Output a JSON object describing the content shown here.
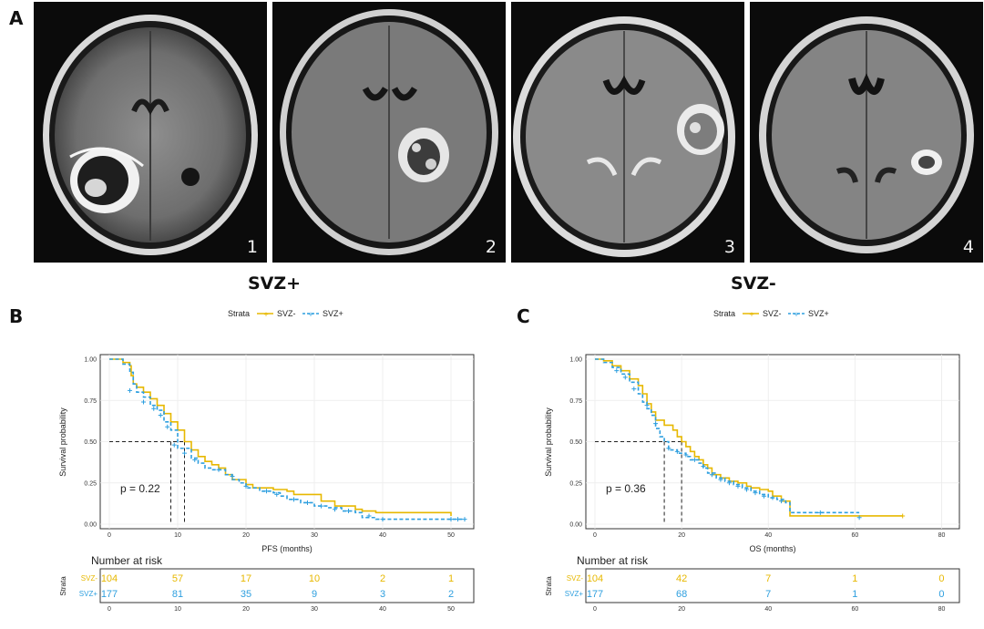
{
  "panel_labels": {
    "a": "A",
    "b": "B",
    "c": "C"
  },
  "images": [
    {
      "number": "1",
      "group": "SVZ+"
    },
    {
      "number": "2",
      "group": "SVZ+"
    },
    {
      "number": "3",
      "group": "SVZ-"
    },
    {
      "number": "4",
      "group": "SVZ-"
    }
  ],
  "groups": {
    "left": "SVZ+",
    "right": "SVZ-"
  },
  "colors": {
    "svz_minus": "#E7B800",
    "svz_plus": "#2E9FDF",
    "grid": "#ebebeb",
    "ref_line": "#222222"
  },
  "chart_data": [
    {
      "type": "line",
      "subtype": "kaplan-meier",
      "legend_title": "Strata",
      "legend_position": "top",
      "xlabel": "PFS (months)",
      "ylabel": "Survival probability",
      "xlim": [
        0,
        52
      ],
      "ylim": [
        0,
        1
      ],
      "xticks": [
        0,
        10,
        20,
        30,
        40,
        50
      ],
      "yticks": [
        "0.00",
        "0.25",
        "0.50",
        "0.75",
        "1.00"
      ],
      "grid": true,
      "annotation": "p = 0.22",
      "median_lines": {
        "y": 0.5,
        "x": [
          9,
          11
        ]
      },
      "series": [
        {
          "name": "SVZ-",
          "color": "#E7B800",
          "style": "solid",
          "steps": [
            [
              0,
              1
            ],
            [
              2,
              0.98
            ],
            [
              3,
              0.96
            ],
            [
              3.2,
              0.9
            ],
            [
              3.5,
              0.85
            ],
            [
              4,
              0.83
            ],
            [
              5,
              0.8
            ],
            [
              6,
              0.76
            ],
            [
              7,
              0.72
            ],
            [
              8,
              0.67
            ],
            [
              9,
              0.62
            ],
            [
              10,
              0.57
            ],
            [
              11,
              0.5
            ],
            [
              12,
              0.45
            ],
            [
              13,
              0.41
            ],
            [
              14,
              0.38
            ],
            [
              15,
              0.36
            ],
            [
              16,
              0.34
            ],
            [
              17,
              0.3
            ],
            [
              18,
              0.27
            ],
            [
              20,
              0.24
            ],
            [
              21,
              0.22
            ],
            [
              24,
              0.21
            ],
            [
              26,
              0.2
            ],
            [
              27,
              0.18
            ],
            [
              31,
              0.14
            ],
            [
              33,
              0.11
            ],
            [
              36,
              0.09
            ],
            [
              37,
              0.08
            ],
            [
              39,
              0.07
            ],
            [
              50,
              0.05
            ]
          ],
          "end": 50,
          "censor": []
        },
        {
          "name": "SVZ+",
          "color": "#2E9FDF",
          "style": "dashed",
          "steps": [
            [
              0,
              1
            ],
            [
              2,
              0.97
            ],
            [
              3,
              0.92
            ],
            [
              3.5,
              0.85
            ],
            [
              4,
              0.8
            ],
            [
              5,
              0.77
            ],
            [
              6,
              0.72
            ],
            [
              7,
              0.69
            ],
            [
              8,
              0.62
            ],
            [
              9,
              0.57
            ],
            [
              10,
              0.46
            ],
            [
              12,
              0.4
            ],
            [
              13,
              0.37
            ],
            [
              14,
              0.34
            ],
            [
              15,
              0.33
            ],
            [
              17,
              0.3
            ],
            [
              18,
              0.27
            ],
            [
              19,
              0.25
            ],
            [
              20,
              0.22
            ],
            [
              22,
              0.2
            ],
            [
              24,
              0.19
            ],
            [
              25,
              0.17
            ],
            [
              26,
              0.15
            ],
            [
              28,
              0.13
            ],
            [
              30,
              0.11
            ],
            [
              32,
              0.1
            ],
            [
              34,
              0.08
            ],
            [
              36,
              0.07
            ],
            [
              37,
              0.04
            ],
            [
              39,
              0.03
            ]
          ],
          "end": 52,
          "censor": [
            [
              3,
              0.81
            ],
            [
              5,
              0.74
            ],
            [
              6.5,
              0.7
            ],
            [
              7.5,
              0.66
            ],
            [
              8.5,
              0.59
            ],
            [
              9.5,
              0.48
            ],
            [
              11,
              0.43
            ],
            [
              12.5,
              0.39
            ],
            [
              16,
              0.33
            ],
            [
              18,
              0.29
            ],
            [
              20,
              0.23
            ],
            [
              23,
              0.2
            ],
            [
              24.5,
              0.18
            ],
            [
              27,
              0.15
            ],
            [
              29,
              0.13
            ],
            [
              31,
              0.11
            ],
            [
              33,
              0.09
            ],
            [
              35,
              0.08
            ],
            [
              38,
              0.05
            ],
            [
              40,
              0.03
            ],
            [
              50,
              0.03
            ],
            [
              51,
              0.03
            ],
            [
              52,
              0.03
            ]
          ]
        }
      ],
      "risk_table": {
        "title": "Number at risk",
        "strata_label": "Strata",
        "times": [
          0,
          10,
          20,
          30,
          40,
          50
        ],
        "rows": [
          {
            "name": "SVZ-",
            "color": "#E7B800",
            "values": [
              "104",
              "57",
              "17",
              "10",
              "2",
              "1"
            ]
          },
          {
            "name": "SVZ+",
            "color": "#2E9FDF",
            "values": [
              "177",
              "81",
              "35",
              "9",
              "3",
              "2"
            ]
          }
        ]
      }
    },
    {
      "type": "line",
      "subtype": "kaplan-meier",
      "legend_title": "Strata",
      "legend_position": "top",
      "xlabel": "OS (months)",
      "ylabel": "Survival probability",
      "xlim": [
        0,
        82
      ],
      "ylim": [
        0,
        1
      ],
      "xticks": [
        0,
        20,
        40,
        60,
        80
      ],
      "yticks": [
        "0.00",
        "0.25",
        "0.50",
        "0.75",
        "1.00"
      ],
      "grid": true,
      "annotation": "p = 0.36",
      "median_lines": {
        "y": 0.5,
        "x": [
          16,
          20
        ]
      },
      "series": [
        {
          "name": "SVZ-",
          "color": "#E7B800",
          "style": "solid",
          "steps": [
            [
              0,
              1
            ],
            [
              2,
              0.99
            ],
            [
              4,
              0.96
            ],
            [
              6,
              0.93
            ],
            [
              8,
              0.88
            ],
            [
              10,
              0.84
            ],
            [
              11,
              0.79
            ],
            [
              12,
              0.73
            ],
            [
              13,
              0.68
            ],
            [
              14,
              0.63
            ],
            [
              16,
              0.6
            ],
            [
              18,
              0.57
            ],
            [
              19,
              0.53
            ],
            [
              20,
              0.5
            ],
            [
              21,
              0.47
            ],
            [
              22,
              0.44
            ],
            [
              23,
              0.41
            ],
            [
              24,
              0.39
            ],
            [
              25,
              0.36
            ],
            [
              26,
              0.34
            ],
            [
              27,
              0.3
            ],
            [
              29,
              0.28
            ],
            [
              31,
              0.26
            ],
            [
              33,
              0.25
            ],
            [
              35,
              0.23
            ],
            [
              36,
              0.22
            ],
            [
              38,
              0.21
            ],
            [
              40,
              0.2
            ],
            [
              41,
              0.17
            ],
            [
              43,
              0.14
            ],
            [
              45,
              0.05
            ]
          ],
          "end": 71,
          "censor": [
            [
              71,
              0.05
            ]
          ]
        },
        {
          "name": "SVZ+",
          "color": "#2E9FDF",
          "style": "dashed",
          "steps": [
            [
              0,
              1
            ],
            [
              2,
              0.98
            ],
            [
              4,
              0.95
            ],
            [
              6,
              0.91
            ],
            [
              8,
              0.86
            ],
            [
              10,
              0.79
            ],
            [
              11,
              0.74
            ],
            [
              12,
              0.7
            ],
            [
              13,
              0.66
            ],
            [
              14,
              0.58
            ],
            [
              15,
              0.53
            ],
            [
              16,
              0.5
            ],
            [
              17,
              0.45
            ],
            [
              19,
              0.43
            ],
            [
              21,
              0.41
            ],
            [
              22,
              0.39
            ],
            [
              24,
              0.37
            ],
            [
              25,
              0.34
            ],
            [
              26,
              0.31
            ],
            [
              28,
              0.28
            ],
            [
              30,
              0.26
            ],
            [
              32,
              0.24
            ],
            [
              34,
              0.22
            ],
            [
              36,
              0.2
            ],
            [
              38,
              0.18
            ],
            [
              40,
              0.16
            ],
            [
              42,
              0.15
            ],
            [
              44,
              0.13
            ],
            [
              45,
              0.07
            ]
          ],
          "end": 61,
          "censor": [
            [
              5,
              0.93
            ],
            [
              7,
              0.89
            ],
            [
              9,
              0.82
            ],
            [
              12,
              0.72
            ],
            [
              14,
              0.61
            ],
            [
              17,
              0.46
            ],
            [
              19,
              0.44
            ],
            [
              21,
              0.42
            ],
            [
              23,
              0.39
            ],
            [
              25,
              0.35
            ],
            [
              27,
              0.3
            ],
            [
              29,
              0.27
            ],
            [
              31,
              0.25
            ],
            [
              33,
              0.23
            ],
            [
              35,
              0.21
            ],
            [
              37,
              0.19
            ],
            [
              39,
              0.17
            ],
            [
              41,
              0.16
            ],
            [
              43,
              0.14
            ],
            [
              52,
              0.07
            ],
            [
              61,
              0.04
            ]
          ]
        }
      ],
      "risk_table": {
        "title": "Number at risk",
        "strata_label": "Strata",
        "times": [
          0,
          20,
          40,
          60,
          80
        ],
        "rows": [
          {
            "name": "SVZ-",
            "color": "#E7B800",
            "values": [
              "104",
              "42",
              "7",
              "1",
              "0"
            ]
          },
          {
            "name": "SVZ+",
            "color": "#2E9FDF",
            "values": [
              "177",
              "68",
              "7",
              "1",
              "0"
            ]
          }
        ]
      }
    }
  ]
}
